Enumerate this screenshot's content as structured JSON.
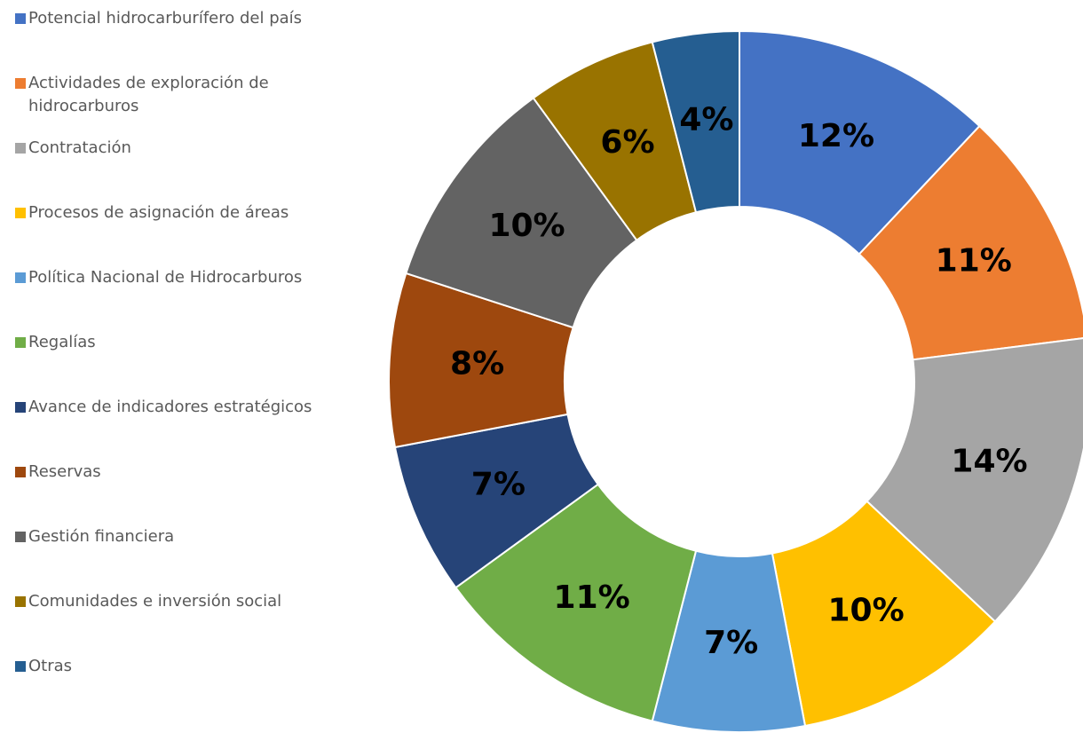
{
  "chart_data": {
    "type": "donut",
    "categories": [
      "Potencial hidrocarburífero del país",
      "Actividades de exploración de hidrocarburos",
      "Contratación",
      "Procesos de asignación de áreas",
      "Política Nacional de Hidrocarburos",
      "Regalías",
      "Avance de indicadores estratégicos",
      "Reservas",
      "Gestión financiera",
      "Comunidades e inversión social",
      "Otras"
    ],
    "values": [
      12,
      11,
      14,
      10,
      7,
      11,
      7,
      8,
      10,
      6,
      4
    ],
    "value_labels": [
      "12%",
      "11%",
      "14%",
      "10%",
      "7%",
      "11%",
      "7%",
      "8%",
      "10%",
      "6%",
      "4%"
    ],
    "colors": [
      "#4472c4",
      "#ed7d31",
      "#a5a5a5",
      "#ffc000",
      "#5b9bd5",
      "#70ad47",
      "#264478",
      "#9e480e",
      "#636363",
      "#997300",
      "#255e91"
    ],
    "legend": "left"
  }
}
